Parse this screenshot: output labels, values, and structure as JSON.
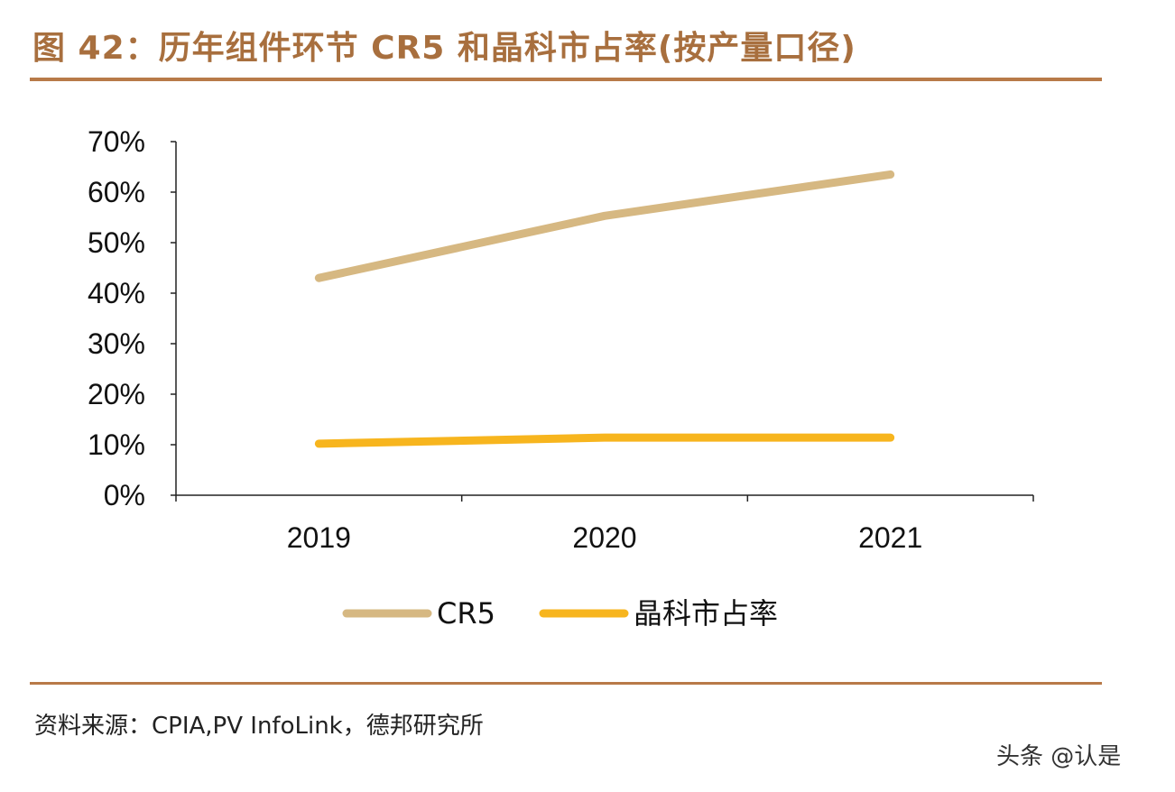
{
  "title": "图 42：历年组件环节 CR5 和晶科市占率(按产量口径)",
  "source": "资料来源：CPIA,PV InfoLink，德邦研究所",
  "watermark": "头条 @认是",
  "chart_data": {
    "type": "line",
    "title": "",
    "xlabel": "",
    "ylabel": "",
    "categories": [
      "2019",
      "2020",
      "2021"
    ],
    "ylim": [
      0,
      70
    ],
    "yticks": [
      "0%",
      "10%",
      "20%",
      "30%",
      "40%",
      "50%",
      "60%",
      "70%"
    ],
    "grid": false,
    "legend_position": "bottom",
    "series": [
      {
        "name": "CR5",
        "values": [
          43.0,
          55.3,
          63.5
        ],
        "color": "#d6b882"
      },
      {
        "name": "晶科市占率",
        "values": [
          10.2,
          11.4,
          11.4
        ],
        "color": "#f7b51e"
      }
    ]
  }
}
